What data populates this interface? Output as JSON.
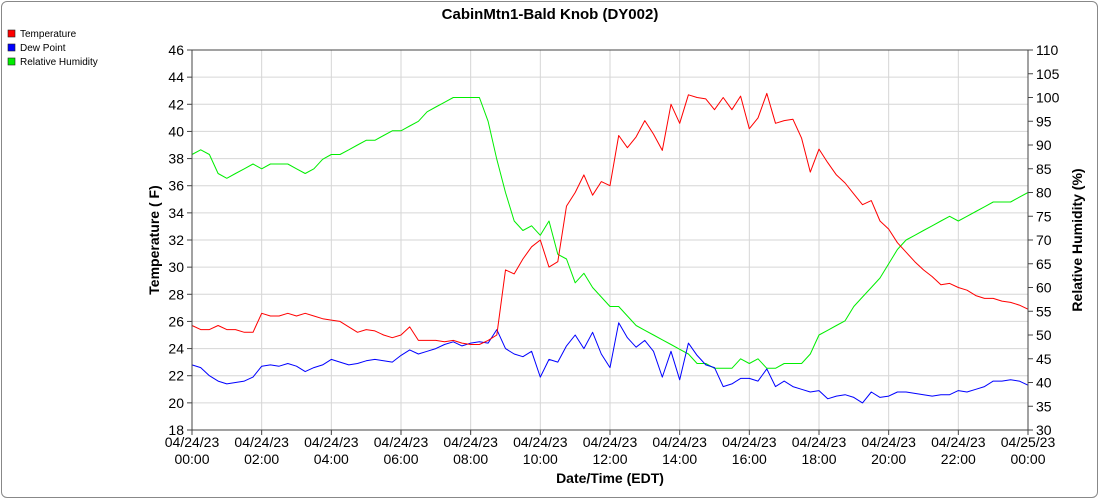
{
  "chart_data": {
    "type": "line",
    "title": "CabinMtn1-Bald Knob (DY002)",
    "xlabel": "Date/Time (EDT)",
    "ylabel": "Temperature ( F)",
    "y2label": "Relative Humidity (%)",
    "ylim": [
      18,
      46
    ],
    "y2lim": [
      30,
      110
    ],
    "xlim_hours": [
      0,
      24
    ],
    "x_ticks": [
      {
        "date": "04/24/23",
        "time": "00:00"
      },
      {
        "date": "04/24/23",
        "time": "02:00"
      },
      {
        "date": "04/24/23",
        "time": "04:00"
      },
      {
        "date": "04/24/23",
        "time": "06:00"
      },
      {
        "date": "04/24/23",
        "time": "08:00"
      },
      {
        "date": "04/24/23",
        "time": "10:00"
      },
      {
        "date": "04/24/23",
        "time": "12:00"
      },
      {
        "date": "04/24/23",
        "time": "14:00"
      },
      {
        "date": "04/24/23",
        "time": "16:00"
      },
      {
        "date": "04/24/23",
        "time": "18:00"
      },
      {
        "date": "04/24/23",
        "time": "20:00"
      },
      {
        "date": "04/24/23",
        "time": "22:00"
      },
      {
        "date": "04/25/23",
        "time": "00:00"
      }
    ],
    "y_ticks": [
      18,
      20,
      22,
      24,
      26,
      28,
      30,
      32,
      34,
      36,
      38,
      40,
      42,
      44,
      46
    ],
    "y2_ticks": [
      30,
      35,
      40,
      45,
      50,
      55,
      60,
      65,
      70,
      75,
      80,
      85,
      90,
      95,
      100,
      105,
      110
    ],
    "grid": true,
    "legend_position": "top-left",
    "series": [
      {
        "name": "Temperature",
        "color": "#ff0000",
        "axis": "left",
        "x": [
          0,
          0.25,
          0.5,
          0.75,
          1,
          1.25,
          1.5,
          1.75,
          2,
          2.25,
          2.5,
          2.75,
          3,
          3.25,
          3.5,
          3.75,
          4,
          4.25,
          4.5,
          4.75,
          5,
          5.25,
          5.5,
          5.75,
          6,
          6.25,
          6.5,
          6.75,
          7,
          7.25,
          7.5,
          7.75,
          8,
          8.25,
          8.5,
          8.75,
          9,
          9.25,
          9.5,
          9.75,
          10,
          10.25,
          10.5,
          10.75,
          11,
          11.25,
          11.5,
          11.75,
          12,
          12.25,
          12.5,
          12.75,
          13,
          13.25,
          13.5,
          13.75,
          14,
          14.25,
          14.5,
          14.75,
          15,
          15.25,
          15.5,
          15.75,
          16,
          16.25,
          16.5,
          16.75,
          17,
          17.25,
          17.5,
          17.75,
          18,
          18.25,
          18.5,
          18.75,
          19,
          19.25,
          19.5,
          19.75,
          20,
          20.25,
          20.5,
          20.75,
          21,
          21.25,
          21.5,
          21.75,
          22,
          22.25,
          22.5,
          22.75,
          23,
          23.25,
          23.5,
          23.75,
          24
        ],
        "y": [
          25.7,
          25.4,
          25.4,
          25.7,
          25.4,
          25.4,
          25.2,
          25.2,
          26.6,
          26.4,
          26.4,
          26.6,
          26.4,
          26.6,
          26.4,
          26.2,
          26.1,
          26.0,
          25.6,
          25.2,
          25.4,
          25.3,
          25.0,
          24.8,
          25.0,
          25.6,
          24.6,
          24.6,
          24.6,
          24.5,
          24.6,
          24.4,
          24.3,
          24.3,
          24.6,
          25.0,
          29.8,
          29.5,
          30.6,
          31.5,
          32.0,
          30.0,
          30.4,
          34.5,
          35.5,
          36.8,
          35.3,
          36.3,
          36.0,
          39.7,
          38.8,
          39.6,
          40.8,
          39.8,
          38.6,
          42.0,
          40.6,
          42.7,
          42.5,
          42.4,
          41.6,
          42.5,
          41.6,
          42.6,
          40.2,
          41.0,
          42.8,
          40.6,
          40.8,
          40.9,
          39.5,
          37.0,
          38.7,
          37.7,
          36.8,
          36.2,
          35.4,
          34.6,
          34.9,
          33.4,
          32.8,
          31.8,
          31.1,
          30.4,
          29.8,
          29.3,
          28.7,
          28.8,
          28.5,
          28.3,
          27.9,
          27.7,
          27.7,
          27.5,
          27.4,
          27.2,
          26.9
        ]
      },
      {
        "name": "Dew Point",
        "color": "#0000ff",
        "axis": "left",
        "x": [
          0,
          0.25,
          0.5,
          0.75,
          1,
          1.25,
          1.5,
          1.75,
          2,
          2.25,
          2.5,
          2.75,
          3,
          3.25,
          3.5,
          3.75,
          4,
          4.25,
          4.5,
          4.75,
          5,
          5.25,
          5.5,
          5.75,
          6,
          6.25,
          6.5,
          6.75,
          7,
          7.25,
          7.5,
          7.75,
          8,
          8.25,
          8.5,
          8.75,
          9,
          9.25,
          9.5,
          9.75,
          10,
          10.25,
          10.5,
          10.75,
          11,
          11.25,
          11.5,
          11.75,
          12,
          12.25,
          12.5,
          12.75,
          13,
          13.25,
          13.5,
          13.75,
          14,
          14.25,
          14.5,
          14.75,
          15,
          15.25,
          15.5,
          15.75,
          16,
          16.25,
          16.5,
          16.75,
          17,
          17.25,
          17.5,
          17.75,
          18,
          18.25,
          18.5,
          18.75,
          19,
          19.25,
          19.5,
          19.75,
          20,
          20.25,
          20.5,
          20.75,
          21,
          21.25,
          21.5,
          21.75,
          22,
          22.25,
          22.5,
          22.75,
          23,
          23.25,
          23.5,
          23.75,
          24
        ],
        "y": [
          22.8,
          22.6,
          22.0,
          21.6,
          21.4,
          21.5,
          21.6,
          21.9,
          22.7,
          22.8,
          22.7,
          22.9,
          22.7,
          22.3,
          22.6,
          22.8,
          23.2,
          23.0,
          22.8,
          22.9,
          23.1,
          23.2,
          23.1,
          23.0,
          23.5,
          23.9,
          23.6,
          23.8,
          24.0,
          24.3,
          24.5,
          24.2,
          24.4,
          24.5,
          24.4,
          25.4,
          24.0,
          23.6,
          23.4,
          23.8,
          21.9,
          23.2,
          23.0,
          24.2,
          25.0,
          24.0,
          25.2,
          23.6,
          22.6,
          25.9,
          24.8,
          24.1,
          24.6,
          23.8,
          21.9,
          23.8,
          21.7,
          24.4,
          23.5,
          22.8,
          22.6,
          21.2,
          21.4,
          21.8,
          21.8,
          21.6,
          22.5,
          21.2,
          21.6,
          21.2,
          21.0,
          20.8,
          20.9,
          20.3,
          20.5,
          20.6,
          20.4,
          20.0,
          20.8,
          20.4,
          20.5,
          20.8,
          20.8,
          20.7,
          20.6,
          20.5,
          20.6,
          20.6,
          20.9,
          20.8,
          21.0,
          21.2,
          21.6,
          21.6,
          21.7,
          21.6,
          21.3
        ]
      },
      {
        "name": "Relative Humidity",
        "color": "#00ee00",
        "axis": "right",
        "x": [
          0,
          0.25,
          0.5,
          0.75,
          1,
          1.25,
          1.5,
          1.75,
          2,
          2.25,
          2.5,
          2.75,
          3,
          3.25,
          3.5,
          3.75,
          4,
          4.25,
          4.5,
          4.75,
          5,
          5.25,
          5.5,
          5.75,
          6,
          6.25,
          6.5,
          6.75,
          7,
          7.25,
          7.5,
          7.75,
          8,
          8.25,
          8.5,
          8.75,
          9,
          9.25,
          9.5,
          9.75,
          10,
          10.25,
          10.5,
          10.75,
          11,
          11.25,
          11.5,
          11.75,
          12,
          12.25,
          12.5,
          12.75,
          13,
          13.25,
          13.5,
          13.75,
          14,
          14.25,
          14.5,
          14.75,
          15,
          15.25,
          15.5,
          15.75,
          16,
          16.25,
          16.5,
          16.75,
          17,
          17.25,
          17.5,
          17.75,
          18,
          18.25,
          18.5,
          18.75,
          19,
          19.25,
          19.5,
          19.75,
          20,
          20.25,
          20.5,
          20.75,
          21,
          21.25,
          21.5,
          21.75,
          22,
          22.25,
          22.5,
          22.75,
          23,
          23.25,
          23.5,
          23.75,
          24
        ],
        "y": [
          88,
          89,
          88,
          84,
          83,
          84,
          85,
          86,
          85,
          86,
          86,
          86,
          85,
          84,
          85,
          87,
          88,
          88,
          89,
          90,
          91,
          91,
          92,
          93,
          93,
          94,
          95,
          97,
          98,
          99,
          100,
          100,
          100,
          100,
          95,
          87,
          80,
          74,
          72,
          73,
          71,
          74,
          67,
          66,
          61,
          63,
          60,
          58,
          56,
          56,
          54,
          52,
          51,
          50,
          49,
          48,
          47,
          46,
          44,
          44,
          43,
          43,
          43,
          45,
          44,
          45,
          43,
          43,
          44,
          44,
          44,
          46,
          50,
          51,
          52,
          53,
          56,
          58,
          60,
          62,
          65,
          68,
          70,
          71,
          72,
          73,
          74,
          75,
          74,
          75,
          76,
          77,
          78,
          78,
          78,
          79,
          80
        ]
      }
    ]
  }
}
